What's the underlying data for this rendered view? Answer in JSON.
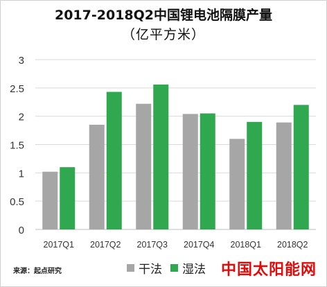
{
  "chart_data": {
    "type": "bar",
    "title": "2017-2018Q2中国锂电池隔膜产量",
    "subtitle": "（亿平方米）",
    "categories": [
      "2017Q1",
      "2017Q2",
      "2017Q3",
      "2017Q4",
      "2018Q1",
      "2018Q2"
    ],
    "series": [
      {
        "name": "干法",
        "color": "#a6a6a6",
        "values": [
          1.02,
          1.85,
          2.22,
          2.04,
          1.6,
          1.89
        ]
      },
      {
        "name": "湿法",
        "color": "#2fa84f",
        "values": [
          1.1,
          2.43,
          2.56,
          2.05,
          1.9,
          2.2
        ]
      }
    ],
    "ylim": [
      0,
      3
    ],
    "yticks": [
      "0",
      "0.5",
      "1",
      "1.5",
      "2",
      "2.5",
      "3"
    ],
    "grid": true,
    "legend_position": "bottom"
  },
  "source_text": "来源：起点研究",
  "watermark_text": "中国太阳能网"
}
